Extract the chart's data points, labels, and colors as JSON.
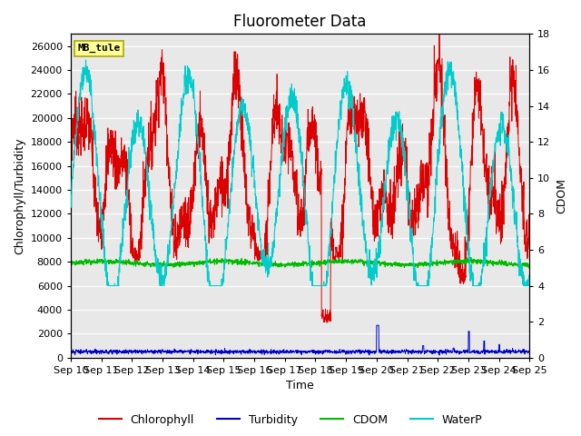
{
  "title": "Fluorometer Data",
  "xlabel": "Time",
  "ylabel_left": "Chlorophyll/Turbidity",
  "ylabel_right": "CDOM",
  "ylim_left": [
    0,
    27000
  ],
  "ylim_right": [
    0,
    18
  ],
  "yticks_left": [
    0,
    2000,
    4000,
    6000,
    8000,
    10000,
    12000,
    14000,
    16000,
    18000,
    20000,
    22000,
    24000,
    26000
  ],
  "yticks_right": [
    0,
    2,
    4,
    6,
    8,
    10,
    12,
    14,
    16,
    18
  ],
  "xtick_labels": [
    "Sep 10",
    "Sep 11",
    "Sep 12",
    "Sep 13",
    "Sep 14",
    "Sep 15",
    "Sep 16",
    "Sep 17",
    "Sep 18",
    "Sep 19",
    "Sep 20",
    "Sep 21",
    "Sep 22",
    "Sep 23",
    "Sep 24",
    "Sep 25"
  ],
  "n_days": 15,
  "n_pts": 2000,
  "bg_color": "#e8e8e8",
  "stripe_color": "#d8d8d8",
  "chlorophyll_color": "#dd0000",
  "turbidity_color": "#0000cc",
  "cdom_color": "#00bb00",
  "waterp_color": "#00cccc",
  "legend_labels": [
    "Chlorophyll",
    "Turbidity",
    "CDOM",
    "WaterP"
  ],
  "box_label": "MB_tule",
  "box_facecolor": "#ffff99",
  "box_edgecolor": "#aaaa00",
  "title_fontsize": 12,
  "label_fontsize": 9,
  "tick_fontsize": 8
}
